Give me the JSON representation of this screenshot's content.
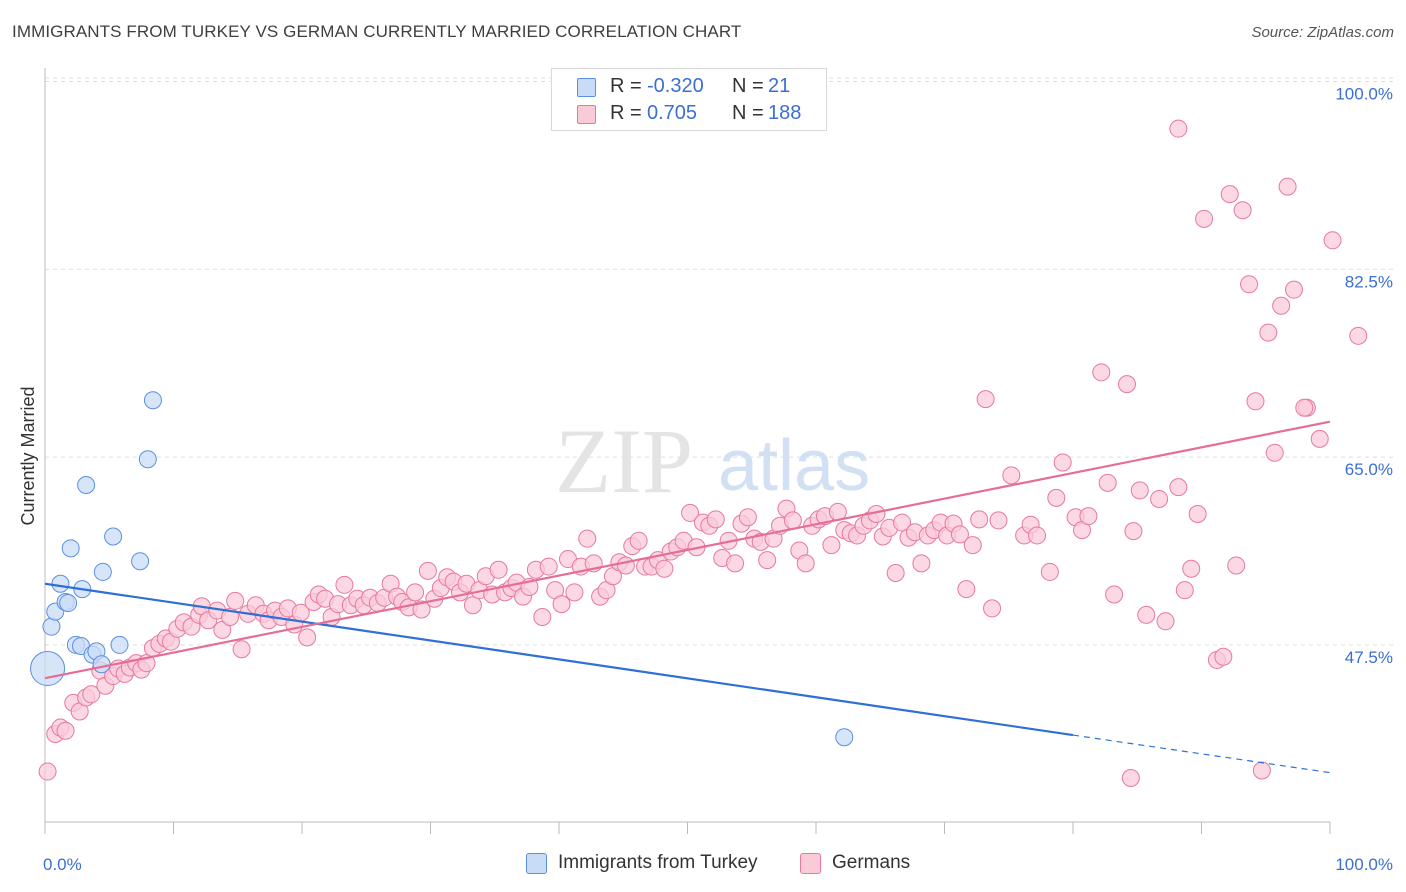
{
  "title": "IMMIGRANTS FROM TURKEY VS GERMAN CURRENTLY MARRIED CORRELATION CHART",
  "source": "Source: ZipAtlas.com",
  "watermark": {
    "zip": "ZIP",
    "atlas": "atlas"
  },
  "legend": {
    "rows": [
      {
        "r_label": "R =",
        "r_value": "-0.320",
        "n_label": "N =",
        "n_value": "21",
        "color": "#5b8fe0",
        "fill": "#c9dcf7"
      },
      {
        "r_label": "R =",
        "r_value": "0.705",
        "n_label": "N =",
        "n_value": "188",
        "color": "#e7799c",
        "fill": "#f9cbd9"
      }
    ]
  },
  "bottom_legend": [
    {
      "label": "Immigrants from Turkey",
      "color": "#5b8fe0",
      "fill": "#c9dcf7"
    },
    {
      "label": "Germans",
      "color": "#e7799c",
      "fill": "#f9cbd9"
    }
  ],
  "chart_data": {
    "type": "scatter",
    "title": "IMMIGRANTS FROM TURKEY VS GERMAN CURRENTLY MARRIED CORRELATION CHART",
    "xlabel": "",
    "ylabel": "Currently Married",
    "xlim": [
      0,
      100
    ],
    "ylim": [
      31,
      102
    ],
    "x_tick_labels": [
      "0.0%",
      "100.0%"
    ],
    "y_ticks": [
      47.5,
      65.0,
      82.5,
      100.0
    ],
    "y_tick_labels": [
      "47.5%",
      "65.0%",
      "82.5%",
      "100.0%"
    ],
    "grid": "horizontal dashed",
    "series": [
      {
        "name": "Immigrants from Turkey",
        "color": "#5b8fe0",
        "fill": "#c9dcf7",
        "trend": {
          "x0": 0,
          "y0": 53.2,
          "x1": 80,
          "y1": 39.1,
          "dashed_to": [
            100,
            35.6
          ]
        },
        "points": [
          [
            0.2,
            45.3,
            2.0
          ],
          [
            0.5,
            49.2,
            1
          ],
          [
            0.8,
            50.6,
            1
          ],
          [
            1.2,
            53.2,
            1
          ],
          [
            1.6,
            51.5,
            1
          ],
          [
            1.8,
            51.4,
            1
          ],
          [
            2.0,
            56.5,
            1
          ],
          [
            2.4,
            47.5,
            1
          ],
          [
            2.8,
            47.4,
            1
          ],
          [
            2.9,
            52.7,
            1
          ],
          [
            3.2,
            62.4,
            1
          ],
          [
            3.7,
            46.6,
            1
          ],
          [
            4.0,
            46.9,
            1
          ],
          [
            4.4,
            45.7,
            1
          ],
          [
            4.5,
            54.3,
            1
          ],
          [
            5.3,
            57.6,
            1
          ],
          [
            5.8,
            47.5,
            1
          ],
          [
            7.4,
            55.3,
            1
          ],
          [
            8.0,
            64.8,
            1
          ],
          [
            8.4,
            70.3,
            1
          ],
          [
            62.2,
            38.9,
            1
          ]
        ]
      },
      {
        "name": "Germans",
        "color": "#e7799c",
        "fill": "#f9cbd9",
        "trend": {
          "x0": 0,
          "y0": 44.4,
          "x1": 100,
          "y1": 68.3
        },
        "points": [
          [
            0.2,
            35.7
          ],
          [
            0.8,
            39.2
          ],
          [
            1.2,
            39.8
          ],
          [
            1.6,
            39.5
          ],
          [
            2.2,
            42.1
          ],
          [
            2.7,
            41.3
          ],
          [
            3.2,
            42.6
          ],
          [
            3.6,
            42.9
          ],
          [
            4.3,
            45.1
          ],
          [
            4.7,
            43.7
          ],
          [
            5.3,
            44.6
          ],
          [
            5.7,
            45.3
          ],
          [
            6.2,
            44.8
          ],
          [
            6.6,
            45.4
          ],
          [
            7.1,
            45.8
          ],
          [
            7.5,
            45.2
          ],
          [
            7.9,
            45.8
          ],
          [
            8.4,
            47.2
          ],
          [
            8.9,
            47.6
          ],
          [
            9.4,
            48.1
          ],
          [
            9.8,
            47.8
          ],
          [
            10.3,
            49.0
          ],
          [
            10.8,
            49.6
          ],
          [
            11.4,
            49.2
          ],
          [
            12.0,
            50.3
          ],
          [
            12.2,
            51.1
          ],
          [
            12.7,
            49.8
          ],
          [
            13.4,
            50.7
          ],
          [
            13.8,
            48.9
          ],
          [
            14.4,
            50.1
          ],
          [
            14.8,
            51.6
          ],
          [
            15.3,
            47.1
          ],
          [
            15.8,
            50.4
          ],
          [
            16.4,
            51.2
          ],
          [
            17.0,
            50.4
          ],
          [
            17.4,
            49.8
          ],
          [
            17.9,
            50.7
          ],
          [
            18.4,
            50.1
          ],
          [
            18.9,
            50.9
          ],
          [
            19.4,
            49.4
          ],
          [
            19.9,
            50.5
          ],
          [
            20.4,
            48.2
          ],
          [
            20.9,
            51.5
          ],
          [
            21.3,
            52.2
          ],
          [
            21.8,
            51.8
          ],
          [
            22.3,
            50.1
          ],
          [
            22.8,
            51.3
          ],
          [
            23.3,
            53.1
          ],
          [
            23.8,
            51.2
          ],
          [
            24.3,
            51.8
          ],
          [
            24.8,
            51.2
          ],
          [
            25.3,
            51.9
          ],
          [
            25.9,
            51.4
          ],
          [
            26.4,
            51.9
          ],
          [
            26.9,
            53.2
          ],
          [
            27.4,
            52.0
          ],
          [
            27.8,
            51.5
          ],
          [
            28.3,
            51.0
          ],
          [
            28.8,
            52.4
          ],
          [
            29.3,
            50.8
          ],
          [
            29.8,
            54.4
          ],
          [
            30.3,
            51.8
          ],
          [
            30.8,
            52.8
          ],
          [
            31.3,
            53.8
          ],
          [
            31.8,
            53.4
          ],
          [
            32.3,
            52.4
          ],
          [
            32.8,
            53.2
          ],
          [
            33.3,
            51.2
          ],
          [
            33.8,
            52.6
          ],
          [
            34.3,
            53.9
          ],
          [
            34.8,
            52.2
          ],
          [
            35.3,
            54.5
          ],
          [
            35.8,
            52.4
          ],
          [
            36.3,
            52.8
          ],
          [
            36.7,
            53.3
          ],
          [
            37.2,
            52.0
          ],
          [
            37.7,
            52.9
          ],
          [
            38.2,
            54.5
          ],
          [
            38.7,
            50.1
          ],
          [
            39.2,
            54.8
          ],
          [
            39.7,
            52.6
          ],
          [
            40.2,
            51.3
          ],
          [
            40.7,
            55.5
          ],
          [
            41.2,
            52.4
          ],
          [
            41.7,
            54.8
          ],
          [
            42.2,
            57.4
          ],
          [
            42.7,
            55.1
          ],
          [
            43.2,
            52.0
          ],
          [
            43.7,
            52.6
          ],
          [
            44.2,
            53.9
          ],
          [
            44.7,
            55.2
          ],
          [
            45.2,
            54.9
          ],
          [
            45.7,
            56.7
          ],
          [
            46.2,
            57.2
          ],
          [
            46.7,
            54.8
          ],
          [
            47.2,
            54.8
          ],
          [
            47.7,
            55.4
          ],
          [
            48.2,
            54.6
          ],
          [
            48.7,
            56.2
          ],
          [
            49.2,
            56.6
          ],
          [
            49.7,
            57.2
          ],
          [
            50.2,
            59.8
          ],
          [
            50.7,
            56.6
          ],
          [
            51.2,
            58.9
          ],
          [
            51.7,
            58.6
          ],
          [
            52.2,
            59.2
          ],
          [
            52.7,
            55.6
          ],
          [
            53.2,
            57.2
          ],
          [
            53.7,
            55.1
          ],
          [
            54.2,
            58.8
          ],
          [
            54.7,
            59.4
          ],
          [
            55.2,
            57.4
          ],
          [
            55.7,
            57.1
          ],
          [
            56.2,
            55.4
          ],
          [
            56.7,
            57.4
          ],
          [
            57.2,
            58.6
          ],
          [
            57.7,
            60.2
          ],
          [
            58.2,
            59.1
          ],
          [
            58.7,
            56.3
          ],
          [
            59.2,
            55.1
          ],
          [
            59.7,
            58.6
          ],
          [
            60.2,
            59.2
          ],
          [
            60.7,
            59.5
          ],
          [
            61.2,
            56.8
          ],
          [
            61.7,
            59.9
          ],
          [
            62.2,
            58.2
          ],
          [
            62.7,
            57.9
          ],
          [
            63.2,
            57.7
          ],
          [
            63.7,
            58.6
          ],
          [
            64.2,
            59.1
          ],
          [
            64.7,
            59.7
          ],
          [
            65.2,
            57.6
          ],
          [
            65.7,
            58.4
          ],
          [
            66.2,
            54.2
          ],
          [
            66.7,
            58.9
          ],
          [
            67.2,
            57.5
          ],
          [
            67.7,
            58.0
          ],
          [
            68.2,
            55.1
          ],
          [
            68.7,
            57.7
          ],
          [
            69.2,
            58.2
          ],
          [
            69.7,
            58.9
          ],
          [
            70.2,
            57.7
          ],
          [
            70.7,
            58.8
          ],
          [
            71.2,
            57.8
          ],
          [
            71.7,
            52.7
          ],
          [
            72.2,
            56.8
          ],
          [
            72.7,
            59.2
          ],
          [
            73.2,
            70.4
          ],
          [
            73.7,
            50.9
          ],
          [
            74.2,
            59.1
          ],
          [
            75.2,
            63.3
          ],
          [
            76.2,
            57.7
          ],
          [
            76.7,
            58.7
          ],
          [
            77.2,
            57.7
          ],
          [
            78.2,
            54.3
          ],
          [
            78.7,
            61.2
          ],
          [
            79.2,
            64.5
          ],
          [
            80.2,
            59.4
          ],
          [
            80.7,
            58.2
          ],
          [
            81.2,
            59.5
          ],
          [
            82.2,
            72.9
          ],
          [
            82.7,
            62.6
          ],
          [
            83.2,
            52.2
          ],
          [
            84.2,
            71.8
          ],
          [
            84.7,
            58.1
          ],
          [
            85.2,
            61.9
          ],
          [
            85.7,
            50.3
          ],
          [
            86.7,
            61.1
          ],
          [
            87.2,
            49.7
          ],
          [
            88.2,
            62.2
          ],
          [
            88.7,
            52.6
          ],
          [
            89.2,
            54.6
          ],
          [
            89.7,
            59.7
          ],
          [
            90.2,
            87.2
          ],
          [
            91.2,
            46.1
          ],
          [
            91.7,
            46.4
          ],
          [
            92.2,
            89.5
          ],
          [
            92.7,
            54.9
          ],
          [
            93.2,
            88.0
          ],
          [
            93.7,
            81.1
          ],
          [
            94.2,
            70.2
          ],
          [
            95.2,
            76.6
          ],
          [
            95.7,
            65.4
          ],
          [
            96.2,
            79.1
          ],
          [
            96.7,
            90.2
          ],
          [
            97.2,
            80.6
          ],
          [
            98.2,
            69.6
          ],
          [
            99.2,
            66.7
          ],
          [
            100.2,
            85.2
          ],
          [
            102.2,
            76.3
          ],
          [
            84.5,
            35.1
          ],
          [
            94.7,
            35.8
          ],
          [
            88.2,
            95.6
          ],
          [
            98.0,
            69.6
          ]
        ]
      }
    ]
  }
}
